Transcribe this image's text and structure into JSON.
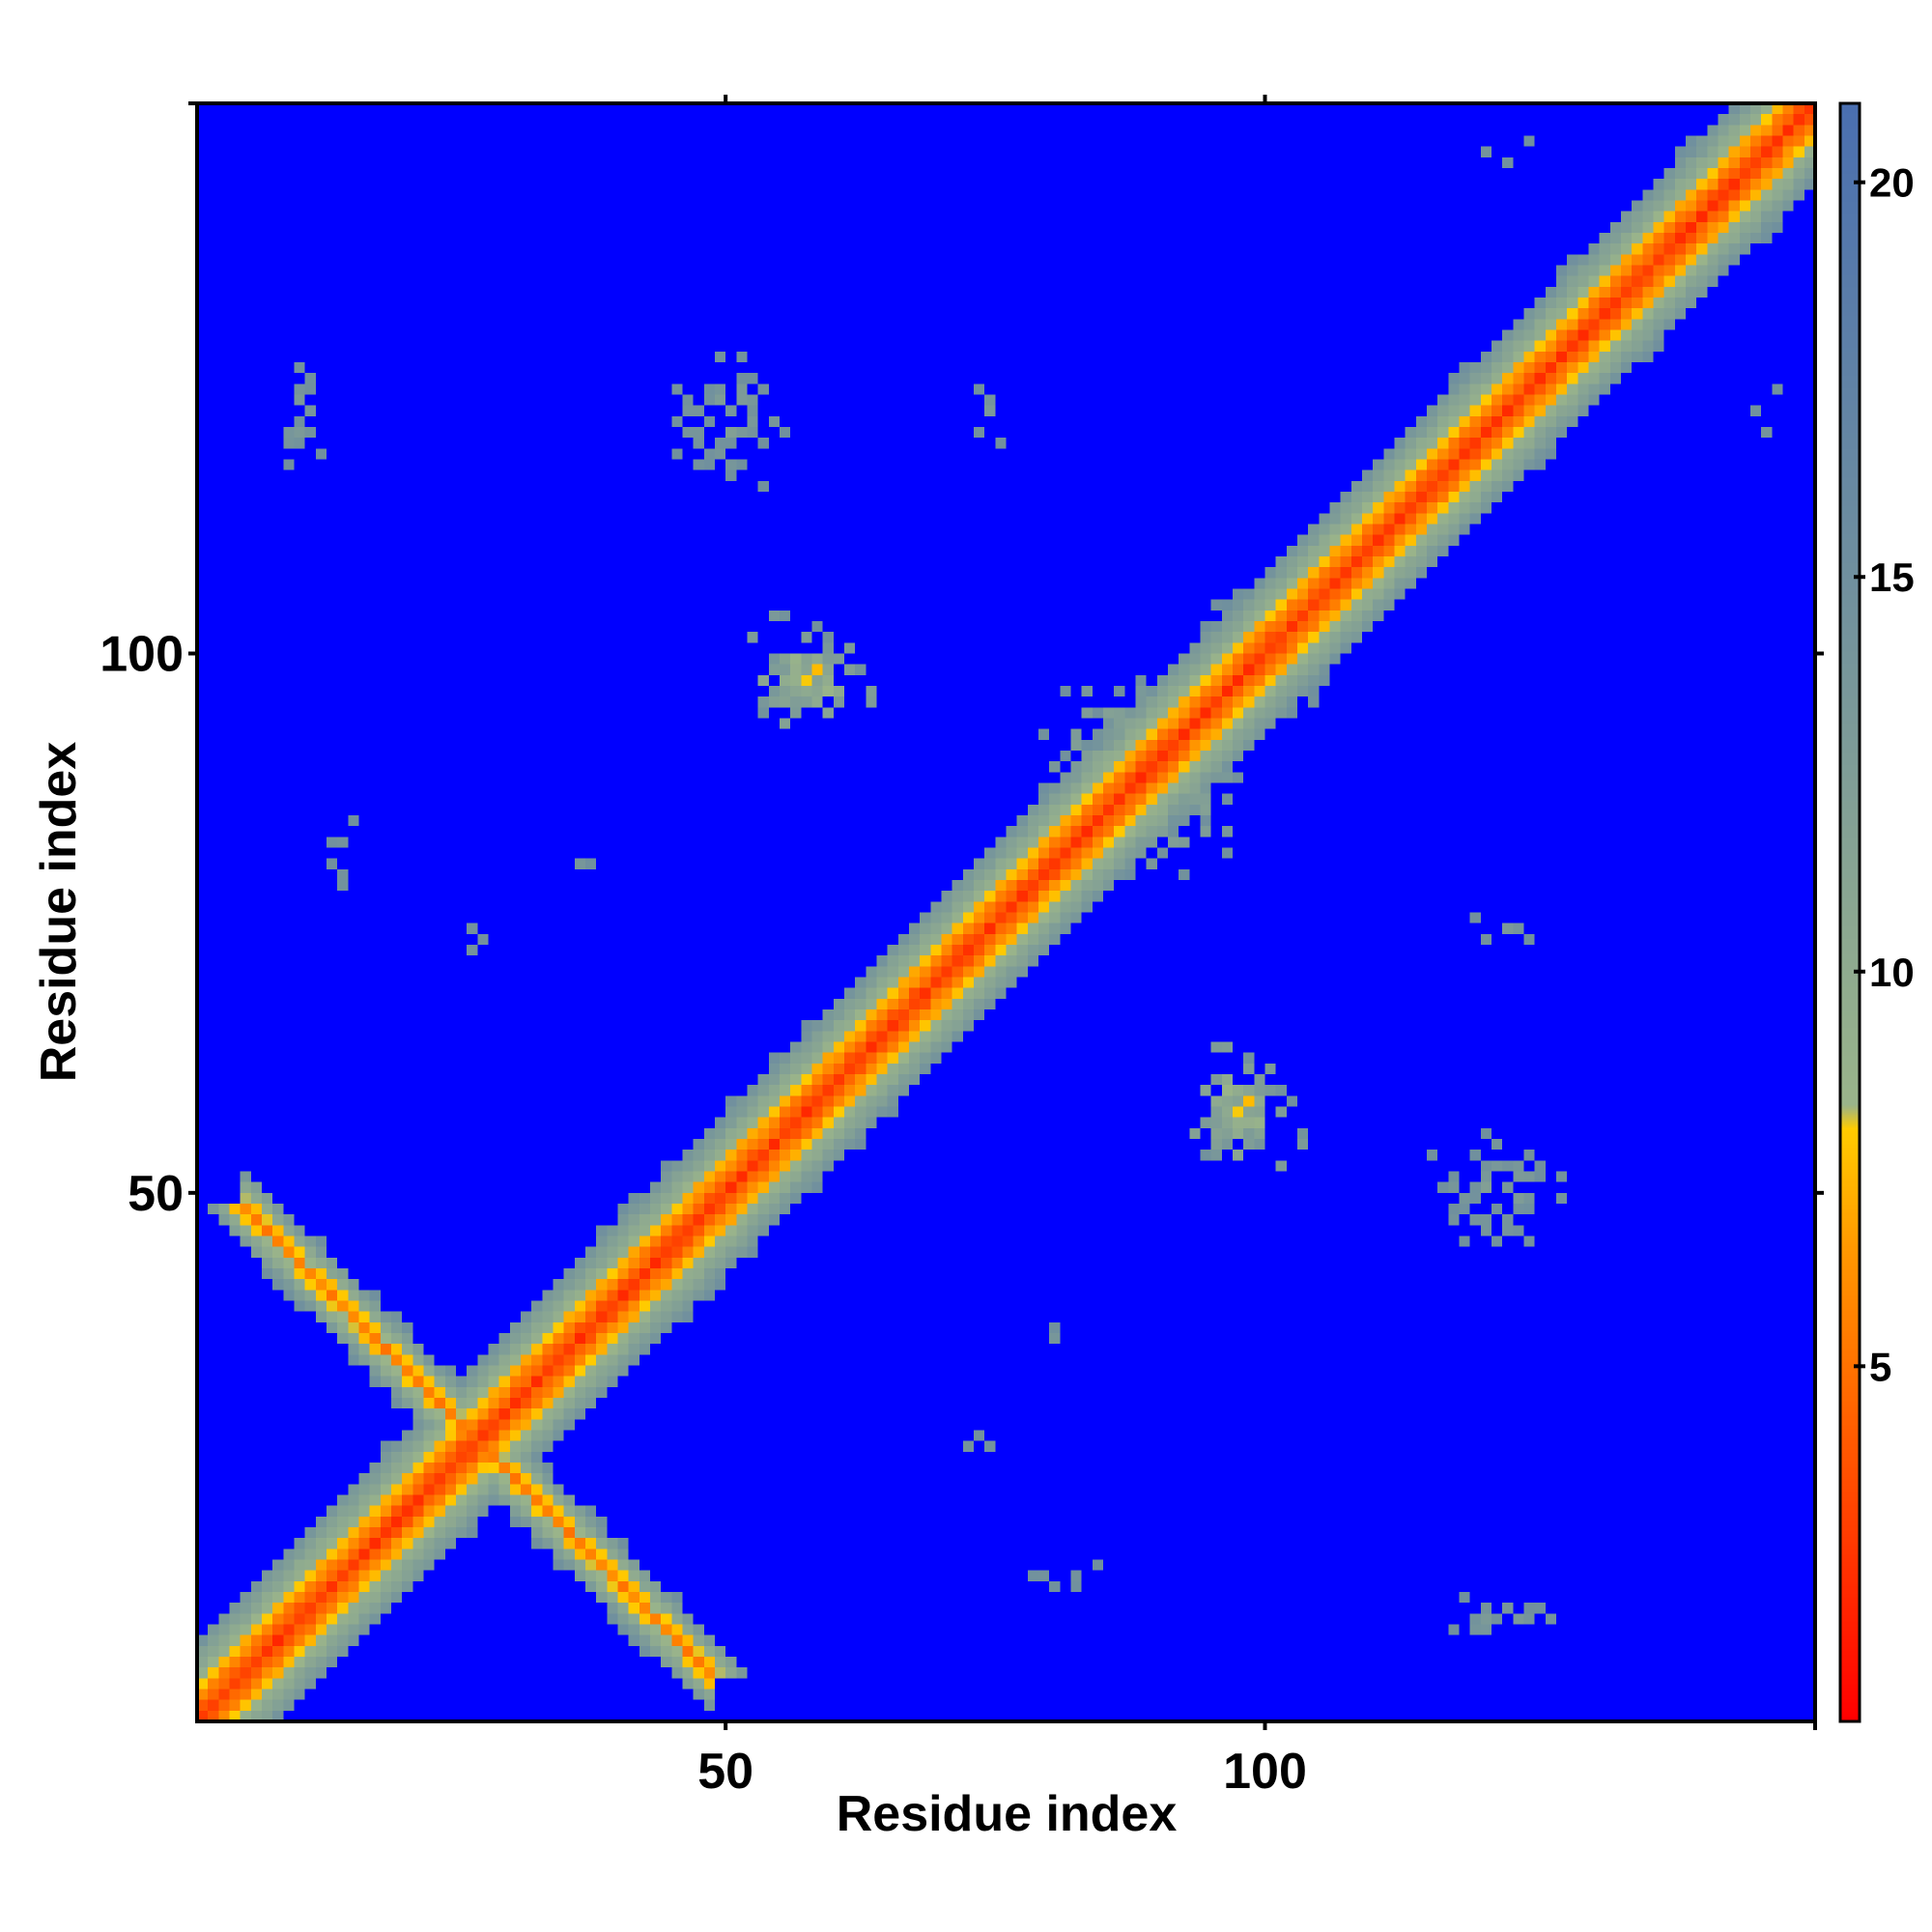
{
  "chart_data": {
    "type": "heatmap",
    "title": "",
    "xlabel": "Residue index",
    "ylabel": "Residue index",
    "n_residues": 150,
    "xlim": [
      1,
      151
    ],
    "ylim": [
      1,
      151
    ],
    "x_ticks": [
      50,
      100
    ],
    "y_ticks": [
      50,
      100
    ],
    "x_tick_labels": [
      "50",
      "100"
    ],
    "y_tick_labels": [
      "50",
      "100"
    ],
    "colorbar": {
      "ticks": [
        5,
        10,
        15,
        20
      ],
      "tick_labels": [
        "5",
        "10",
        "15",
        "20"
      ],
      "range": [
        0.5,
        21
      ],
      "stops": [
        {
          "value": 0.5,
          "color": "#ff0000"
        },
        {
          "value": 6.5,
          "color": "#ff9900"
        },
        {
          "value": 8.0,
          "color": "#ffcc00"
        },
        {
          "value": 8.3,
          "color": "#9ab48a"
        },
        {
          "value": 21,
          "color": "#4a6fb0"
        }
      ],
      "background_color": "#0000ff",
      "cutoff": 15
    },
    "features": {
      "main_diagonal": {
        "from": 1,
        "to": 150,
        "core_value": 2
      },
      "antiparallel_band": {
        "from_x": 5,
        "from_y": 48,
        "to_x": 48,
        "to_y": 5,
        "core_value": 5
      },
      "contact_regions": [
        {
          "x": [
            54,
            58
          ],
          "y": [
            95,
            100
          ],
          "value": 6
        },
        {
          "x": [
            96,
            98
          ],
          "y": [
            56,
            60
          ],
          "value": 6
        },
        {
          "x": [
            100,
            103
          ],
          "y": [
            98,
            103
          ],
          "value": 7
        },
        {
          "x": [
            82,
            92
          ],
          "y": [
            85,
            95
          ],
          "value": 8
        },
        {
          "x": [
            40,
            60
          ],
          "y": [
            110,
            135
          ],
          "value": 12
        },
        {
          "x": [
            5,
            15
          ],
          "y": [
            110,
            135
          ],
          "value": 13
        },
        {
          "x": [
            110,
            130
          ],
          "y": [
            40,
            60
          ],
          "value": 12
        },
        {
          "x": [
            100,
            140
          ],
          "y": [
            5,
            15
          ],
          "value": 13
        },
        {
          "x": [
            66,
            80
          ],
          "y": [
            22,
            30
          ],
          "value": 13
        },
        {
          "x": [
            8,
            20
          ],
          "y": [
            70,
            90
          ],
          "value": 13
        },
        {
          "x": [
            30,
            42
          ],
          "y": [
            75,
            85
          ],
          "value": 13
        },
        {
          "x": [
            108,
            135
          ],
          "y": [
            70,
            78
          ],
          "value": 13
        },
        {
          "x": [
            108,
            132
          ],
          "y": [
            143,
            150
          ],
          "value": 13
        }
      ]
    }
  }
}
